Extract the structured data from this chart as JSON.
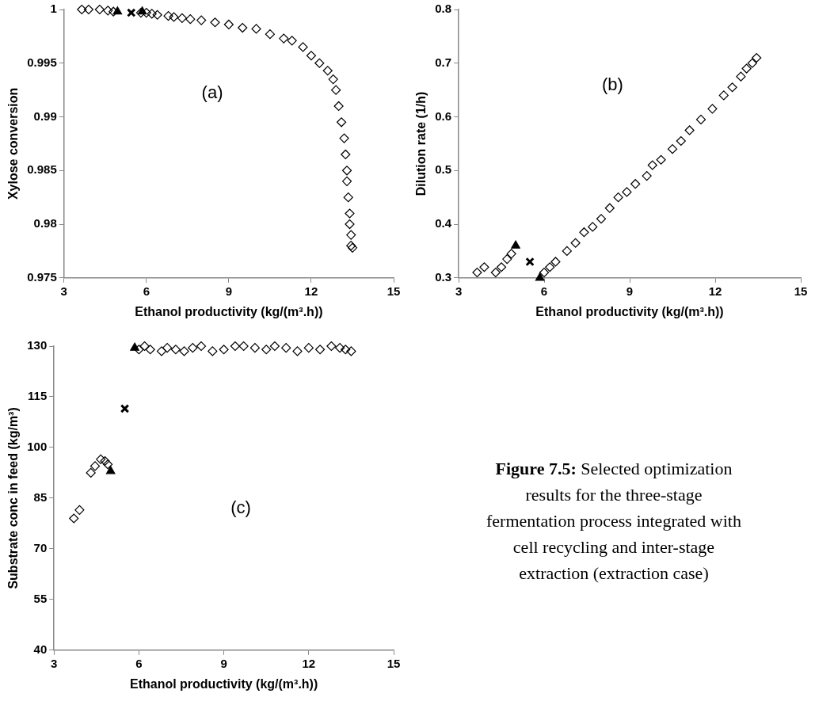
{
  "chart_data": [
    {
      "type": "scatter",
      "xlabel": "Ethanol productivity (kg/(m³.h))",
      "ylabel": "Xylose conversion",
      "xlim": [
        3,
        15
      ],
      "ylim": [
        0.975,
        1
      ],
      "xticks": [
        3,
        6,
        9,
        12,
        15
      ],
      "yticks": [
        0.975,
        0.98,
        0.985,
        0.99,
        0.995,
        1
      ],
      "annotations": [
        "(a)"
      ],
      "series": [
        {
          "color": "#000000",
          "marker": "diamond",
          "x": [
            3.65,
            3.9,
            4.3,
            4.6,
            4.8,
            5.8,
            6.0,
            6.2,
            6.4,
            6.8,
            7.0,
            7.3,
            7.6,
            8.0,
            8.5,
            9.0,
            9.5,
            10.0,
            10.5,
            11.0,
            11.3,
            11.7,
            12.0,
            12.3,
            12.6,
            12.8,
            12.9,
            13.0,
            13.1,
            13.2,
            13.25,
            13.3,
            13.3,
            13.35,
            13.4,
            13.4,
            13.45,
            13.45,
            13.5
          ],
          "values": [
            1.0,
            1.0,
            1.0,
            0.9999,
            0.9998,
            0.9997,
            0.9997,
            0.9996,
            0.9995,
            0.9994,
            0.9993,
            0.9992,
            0.9991,
            0.999,
            0.9988,
            0.9986,
            0.9983,
            0.9982,
            0.9977,
            0.9973,
            0.9971,
            0.9965,
            0.9957,
            0.995,
            0.9943,
            0.9935,
            0.9925,
            0.991,
            0.9895,
            0.988,
            0.9865,
            0.985,
            0.984,
            0.9825,
            0.981,
            0.98,
            0.979,
            0.978,
            0.9778
          ]
        },
        {
          "color": "#000000",
          "marker": "triangle",
          "x": [
            4.95,
            5.85
          ],
          "values": [
            0.9998,
            0.9998
          ]
        },
        {
          "color": "#000000",
          "marker": "cross",
          "x": [
            5.45
          ],
          "values": [
            0.9997
          ]
        }
      ]
    },
    {
      "type": "scatter",
      "xlabel": "Ethanol productivity (kg/(m³.h))",
      "ylabel": "Dilution rate (1/h)",
      "xlim": [
        3,
        15
      ],
      "ylim": [
        0.3,
        0.8
      ],
      "xticks": [
        3,
        6,
        9,
        12,
        15
      ],
      "yticks": [
        0.3,
        0.4,
        0.5,
        0.6,
        0.7,
        0.8
      ],
      "annotations": [
        "(b)"
      ],
      "series": [
        {
          "color": "#000000",
          "marker": "diamond",
          "x": [
            3.65,
            3.9,
            4.3,
            4.5,
            4.7,
            4.85,
            6.0,
            6.2,
            6.4,
            6.8,
            7.1,
            7.4,
            7.7,
            8.0,
            8.3,
            8.6,
            8.9,
            9.2,
            9.6,
            9.8,
            10.1,
            10.5,
            10.8,
            11.1,
            11.5,
            11.9,
            12.3,
            12.6,
            12.9,
            13.1,
            13.3,
            13.45
          ],
          "values": [
            0.31,
            0.32,
            0.31,
            0.32,
            0.335,
            0.345,
            0.31,
            0.32,
            0.33,
            0.35,
            0.365,
            0.385,
            0.395,
            0.41,
            0.43,
            0.45,
            0.46,
            0.475,
            0.49,
            0.51,
            0.52,
            0.54,
            0.555,
            0.575,
            0.595,
            0.615,
            0.64,
            0.655,
            0.675,
            0.69,
            0.7,
            0.71
          ]
        },
        {
          "color": "#000000",
          "marker": "triangle",
          "x": [
            5.0,
            5.85
          ],
          "values": [
            0.36,
            0.3
          ]
        },
        {
          "color": "#000000",
          "marker": "cross",
          "x": [
            5.5
          ],
          "values": [
            0.33
          ]
        }
      ]
    },
    {
      "type": "scatter",
      "xlabel": "Ethanol productivity (kg/(m³.h))",
      "ylabel": "Substrate conc in feed (kg/m³)",
      "xlim": [
        3,
        15
      ],
      "ylim": [
        40,
        130
      ],
      "xticks": [
        3,
        6,
        9,
        12,
        15
      ],
      "yticks": [
        40,
        55,
        70,
        85,
        100,
        115,
        130
      ],
      "annotations": [
        "(c)"
      ],
      "series": [
        {
          "color": "#000000",
          "marker": "diamond",
          "x": [
            3.7,
            3.9,
            4.3,
            4.45,
            4.65,
            4.8,
            4.9,
            6.0,
            6.2,
            6.4,
            6.8,
            7.0,
            7.3,
            7.6,
            7.9,
            8.2,
            8.6,
            9.0,
            9.4,
            9.7,
            10.1,
            10.5,
            10.8,
            11.2,
            11.6,
            12.0,
            12.4,
            12.8,
            13.1,
            13.3,
            13.5
          ],
          "values": [
            79,
            81.5,
            92.5,
            94.5,
            96.5,
            96,
            95,
            129,
            130,
            129,
            128.5,
            129.5,
            129,
            128.5,
            129.5,
            130,
            128.5,
            129,
            130,
            130,
            129.5,
            129,
            130,
            129.5,
            128.5,
            129.5,
            129,
            130,
            129.5,
            129,
            128.5
          ]
        },
        {
          "color": "#000000",
          "marker": "triangle",
          "x": [
            5.0,
            5.85
          ],
          "values": [
            93,
            129.5
          ]
        },
        {
          "color": "#000000",
          "marker": "cross",
          "x": [
            5.5
          ],
          "values": [
            111.5
          ]
        }
      ]
    },
    {
      "type": "other",
      "title": "Figure 7.5:",
      "subtitle": "Selected optimization results for the three-stage fermentation process integrated with cell recycling and inter-stage extraction (extraction case)"
    }
  ]
}
